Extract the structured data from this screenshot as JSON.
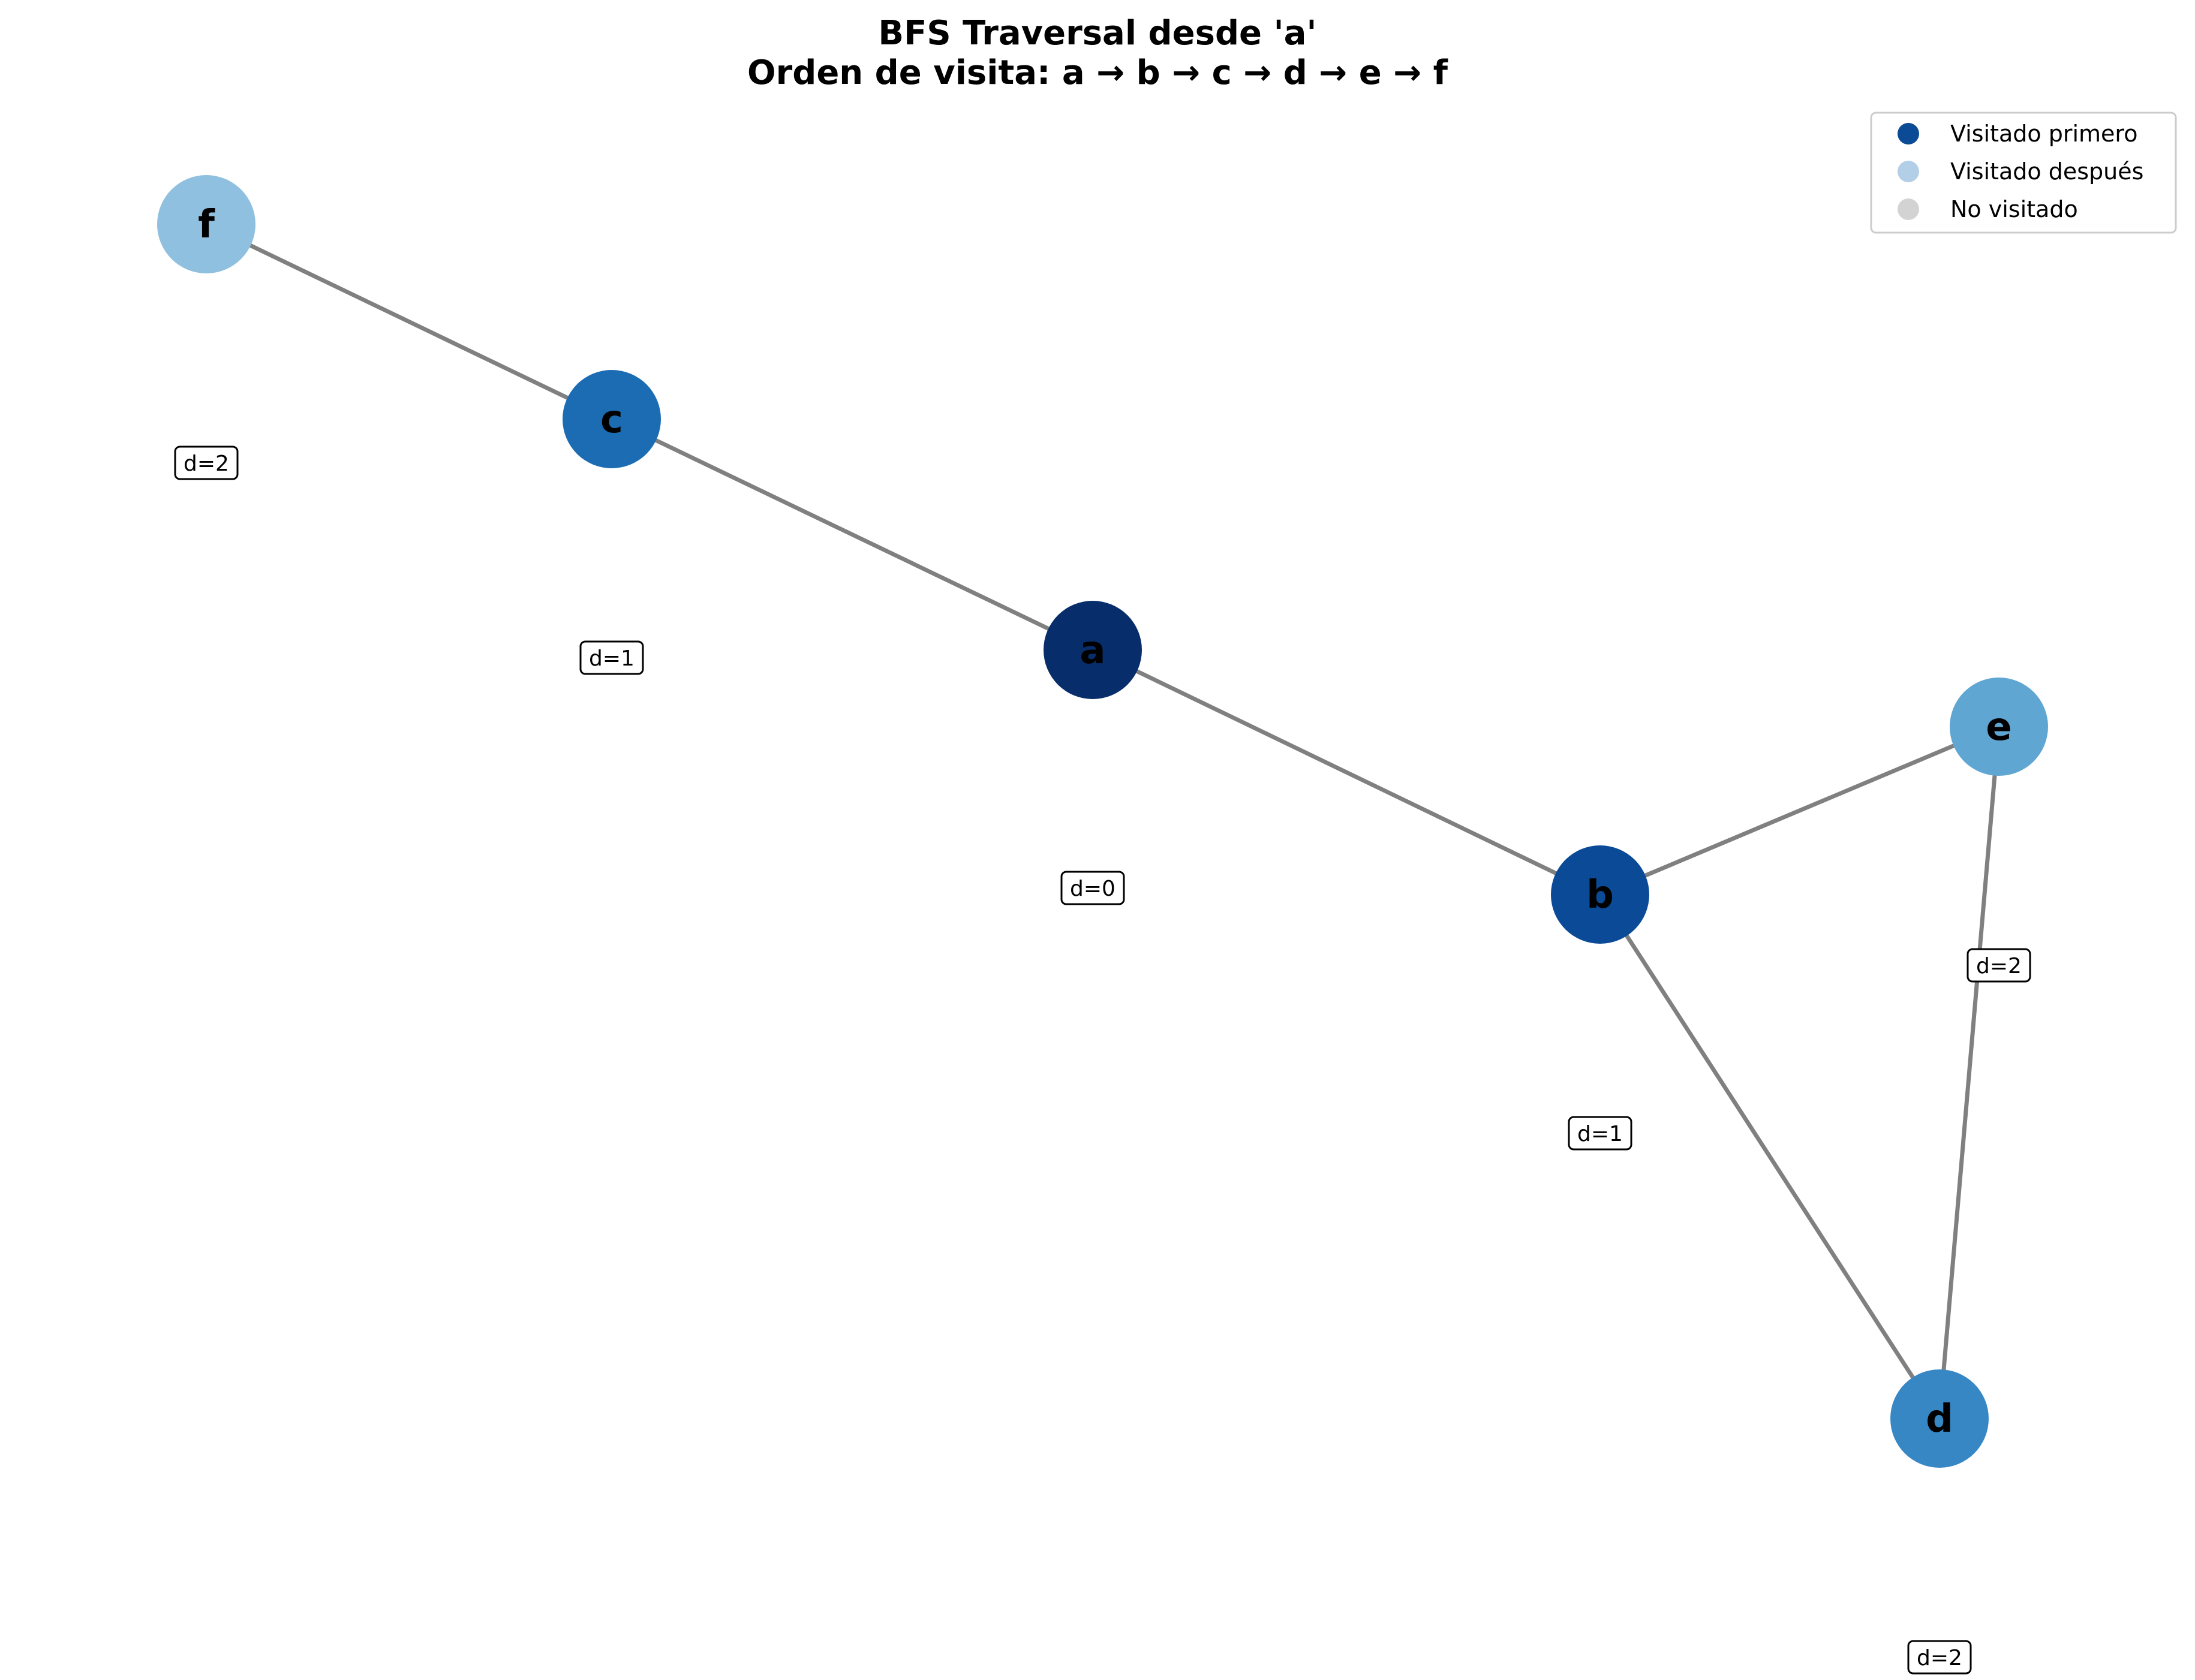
{
  "title": {
    "line1": "BFS Traversal desde 'a'",
    "line2": "Orden de visita: a → b → c → d → e → f"
  },
  "legend": {
    "items": [
      {
        "label": "Visitado primero",
        "color": "#0b4a94"
      },
      {
        "label": "Visitado después",
        "color": "#b3cfe8"
      },
      {
        "label": "No visitado",
        "color": "#d3d3d3"
      }
    ]
  },
  "graph": {
    "nodes": [
      {
        "id": "a",
        "label": "a",
        "distance_label": "d=0",
        "color": "#082d6b"
      },
      {
        "id": "b",
        "label": "b",
        "distance_label": "d=1",
        "color": "#0a4a96"
      },
      {
        "id": "c",
        "label": "c",
        "distance_label": "d=1",
        "color": "#1c6cb4"
      },
      {
        "id": "d",
        "label": "d",
        "distance_label": "d=2",
        "color": "#3787c4"
      },
      {
        "id": "e",
        "label": "e",
        "distance_label": "d=2",
        "color": "#5fa6d2"
      },
      {
        "id": "f",
        "label": "f",
        "distance_label": "d=2",
        "color": "#8fc0df"
      }
    ],
    "edges": [
      {
        "from": "f",
        "to": "c"
      },
      {
        "from": "c",
        "to": "a"
      },
      {
        "from": "a",
        "to": "b"
      },
      {
        "from": "b",
        "to": "e"
      },
      {
        "from": "b",
        "to": "d"
      },
      {
        "from": "e",
        "to": "d"
      }
    ],
    "edge_color": "#808080"
  }
}
